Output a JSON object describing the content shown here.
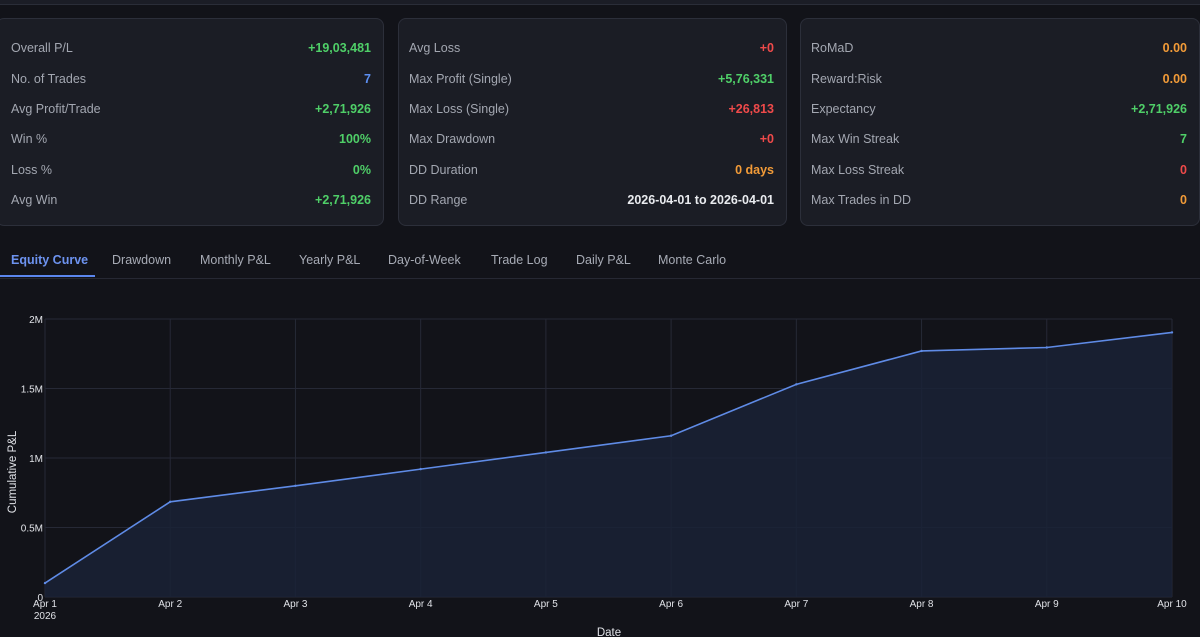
{
  "stats": {
    "col1": [
      {
        "label": "Overall P/L",
        "value": "+19,03,481",
        "color": "green"
      },
      {
        "label": "No. of Trades",
        "value": "7",
        "color": "blue"
      },
      {
        "label": "Avg Profit/Trade",
        "value": "+2,71,926",
        "color": "green"
      },
      {
        "label": "Win %",
        "value": "100%",
        "color": "green"
      },
      {
        "label": "Loss %",
        "value": "0%",
        "color": "green"
      },
      {
        "label": "Avg Win",
        "value": "+2,71,926",
        "color": "green"
      }
    ],
    "col2": [
      {
        "label": "Avg Loss",
        "value": "+0",
        "color": "red"
      },
      {
        "label": "Max Profit (Single)",
        "value": "+5,76,331",
        "color": "green"
      },
      {
        "label": "Max Loss (Single)",
        "value": "+26,813",
        "color": "red"
      },
      {
        "label": "Max Drawdown",
        "value": "+0",
        "color": "red"
      },
      {
        "label": "DD Duration",
        "value": "0 days",
        "color": "orange"
      },
      {
        "label": "DD Range",
        "value": "2026-04-01 to 2026-04-01",
        "color": "white"
      }
    ],
    "col3": [
      {
        "label": "RoMaD",
        "value": "0.00",
        "color": "orange"
      },
      {
        "label": "Reward:Risk",
        "value": "0.00",
        "color": "orange"
      },
      {
        "label": "Expectancy",
        "value": "+2,71,926",
        "color": "green"
      },
      {
        "label": "Max Win Streak",
        "value": "7",
        "color": "green"
      },
      {
        "label": "Max Loss Streak",
        "value": "0",
        "color": "red"
      },
      {
        "label": "Max Trades in DD",
        "value": "0",
        "color": "orange"
      }
    ]
  },
  "tabs": [
    {
      "label": "Equity Curve",
      "active": true
    },
    {
      "label": "Drawdown"
    },
    {
      "label": "Monthly P&L"
    },
    {
      "label": "Yearly P&L"
    },
    {
      "label": "Day-of-Week"
    },
    {
      "label": "Trade Log"
    },
    {
      "label": "Daily P&L"
    },
    {
      "label": "Monte Carlo"
    }
  ],
  "colors": {
    "green": "#4fcf68",
    "red": "#ef4a4a",
    "blue": "#5c8ff2",
    "orange": "#f29b38",
    "white": "#e9ebef",
    "line": "#5f8be6"
  },
  "chart_data": {
    "type": "area",
    "title": "",
    "xlabel": "Date",
    "ylabel": "Cumulative P&L",
    "categories": [
      "Apr 1",
      "Apr 2",
      "Apr 3",
      "Apr 4",
      "Apr 5",
      "Apr 6",
      "Apr 7",
      "Apr 8",
      "Apr 9",
      "Apr 10"
    ],
    "x_year_label": "2026",
    "values": [
      100000,
      685000,
      800000,
      920000,
      1040000,
      1160000,
      1530000,
      1770000,
      1795000,
      1903481
    ],
    "ylim": [
      0,
      2000000
    ],
    "yticks": [
      0,
      500000,
      1000000,
      1500000,
      2000000
    ],
    "ytick_labels": [
      "0",
      "0.5M",
      "1M",
      "1.5M",
      "2M"
    ],
    "grid": true
  }
}
